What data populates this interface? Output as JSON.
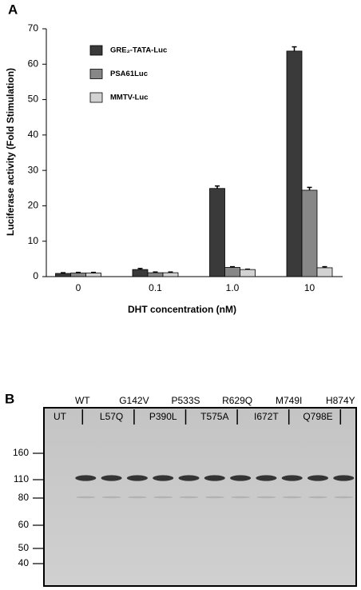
{
  "panel_a_label": "A",
  "chart_data": {
    "type": "bar",
    "x_label": "DHT concentration (nM)",
    "y_label": "Luciferase activity (Fold Stimulation)",
    "categories": [
      "0",
      "0.1",
      "1.0",
      "10"
    ],
    "series": [
      {
        "name": "GRE₂-TATA-Luc",
        "color": "#3a3a3a",
        "values": [
          0.9,
          2.0,
          24.9,
          63.7
        ],
        "errors": [
          0.2,
          0.3,
          0.7,
          1.2
        ]
      },
      {
        "name": "PSA61Luc",
        "color": "#878787",
        "values": [
          1.0,
          1.1,
          2.6,
          24.4
        ],
        "errors": [
          0.2,
          0.2,
          0.2,
          0.8
        ]
      },
      {
        "name": "MMTV-Luc",
        "color": "#d2d2d2",
        "values": [
          1.0,
          1.1,
          2.0,
          2.5
        ],
        "errors": [
          0.2,
          0.2,
          0.1,
          0.3
        ]
      }
    ],
    "ylim": [
      0,
      70
    ],
    "yticks": [
      0,
      10,
      20,
      30,
      40,
      50,
      60,
      70
    ],
    "grid": false,
    "legend": "upper left"
  },
  "panel_b_label": "B",
  "blot": {
    "lanes": [
      "UT",
      "WT",
      "L57Q",
      "G142V",
      "P390L",
      "P533S",
      "T575A",
      "R629Q",
      "I672T",
      "M749I",
      "Q798E",
      "H874Y"
    ],
    "markers": [
      160,
      110,
      80,
      60,
      50,
      40
    ]
  }
}
